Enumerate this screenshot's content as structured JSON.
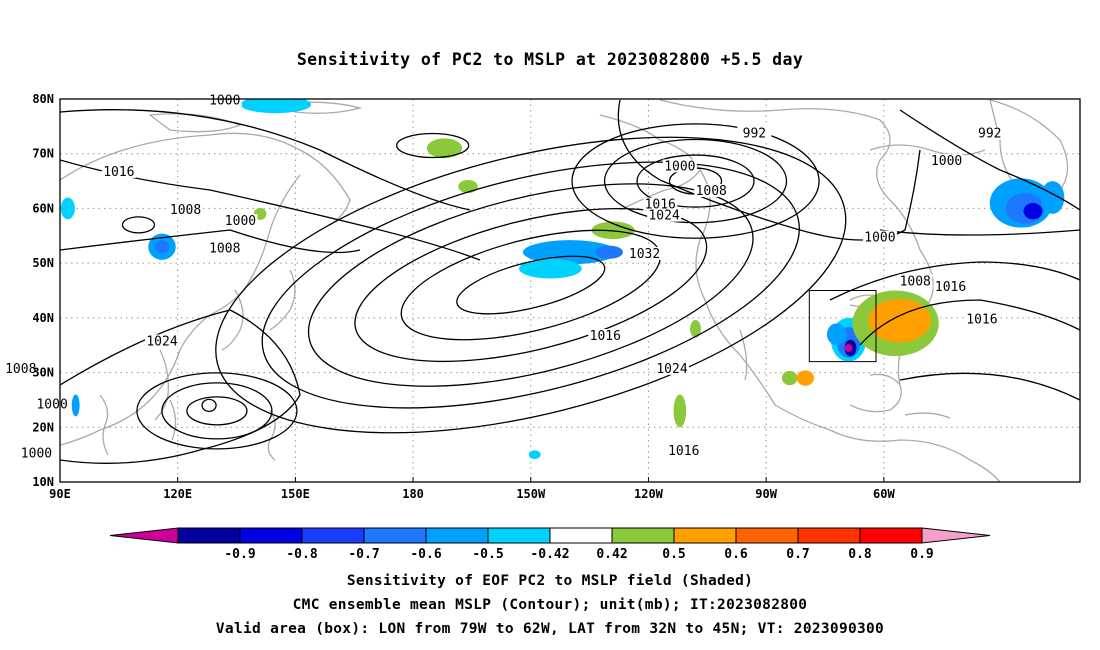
{
  "title": "Sensitivity of PC2 to MSLP at 2023082800 +5.5 day",
  "map": {
    "lon_labels": [
      "90E",
      "120E",
      "150E",
      "180",
      "150W",
      "120W",
      "90W",
      "60W"
    ],
    "lat_labels": [
      "80N",
      "70N",
      "60N",
      "50N",
      "40N",
      "30N",
      "20N",
      "10N"
    ],
    "contour_labels": [
      {
        "value": "1000",
        "lon": 132,
        "lat": 79.5
      },
      {
        "value": "992",
        "lon": -93,
        "lat": 73.5
      },
      {
        "value": "992",
        "lon": -33,
        "lat": 73.5
      },
      {
        "value": "1016",
        "lon": 105,
        "lat": 66.5
      },
      {
        "value": "1000",
        "lon": -112,
        "lat": 67.5
      },
      {
        "value": "1008",
        "lon": -104,
        "lat": 63
      },
      {
        "value": "1000",
        "lon": -44,
        "lat": 68.5
      },
      {
        "value": "1008",
        "lon": 122,
        "lat": 59.5
      },
      {
        "value": "1016",
        "lon": -117,
        "lat": 60.5
      },
      {
        "value": "1024",
        "lon": -116,
        "lat": 58.5
      },
      {
        "value": "1000",
        "lon": 136,
        "lat": 57.5
      },
      {
        "value": "1032",
        "lon": -121,
        "lat": 51.5
      },
      {
        "value": "1000",
        "lon": -61,
        "lat": 54.5
      },
      {
        "value": "1008",
        "lon": 132,
        "lat": 52.5
      },
      {
        "value": "1008",
        "lon": -52,
        "lat": 46.5
      },
      {
        "value": "1016",
        "lon": -43,
        "lat": 45.5
      },
      {
        "value": "1016",
        "lon": -35,
        "lat": 39.5
      },
      {
        "value": "1024",
        "lon": 116,
        "lat": 35.5
      },
      {
        "value": "1016",
        "lon": -131,
        "lat": 36.5
      },
      {
        "value": "1024",
        "lon": -114,
        "lat": 30.5
      },
      {
        "value": "1008",
        "lon": 80,
        "lat": 30.5
      },
      {
        "value": "1000",
        "lon": 88,
        "lat": 24
      },
      {
        "value": "1016",
        "lon": -111,
        "lat": 15.5
      },
      {
        "value": "1000",
        "lon": 84,
        "lat": 15
      }
    ],
    "valid_box": {
      "lon_from": -79,
      "lon_to": -62,
      "lat_from": 32,
      "lat_to": 45
    }
  },
  "colorbar": {
    "labels": [
      "-0.9",
      "-0.8",
      "-0.7",
      "-0.6",
      "-0.5",
      "-0.42",
      "0.42",
      "0.5",
      "0.6",
      "0.7",
      "0.8",
      "0.9"
    ],
    "low_extend_color": "#cc0099",
    "high_extend_color": "#f5a0c8",
    "colors": [
      "#0000a0",
      "#0000e0",
      "#1a3cff",
      "#1e78ff",
      "#00a0ff",
      "#00d2ff",
      "#ffffff",
      "#8cc83c",
      "#ffa000",
      "#ff6400",
      "#ff3200",
      "#ff0000"
    ]
  },
  "captions": {
    "line1": "Sensitivity of EOF PC2 to MSLP field (Shaded)",
    "line2": "CMC ensemble mean MSLP (Contour); unit(mb); IT:2023082800",
    "line3": "Valid area (box): LON from 79W to 62W, LAT from 32N to 45N; VT: 2023090300"
  }
}
